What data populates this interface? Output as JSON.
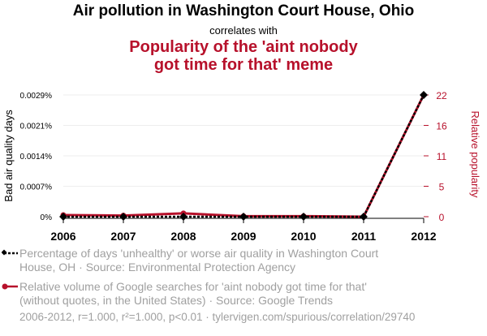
{
  "titles": {
    "main": "Air pollution in Washington Court House, Ohio",
    "connector": "correlates with",
    "secondary": "Popularity of the 'aint nobody got time for that' meme"
  },
  "colors": {
    "series1": "#000000",
    "series2": "#b7112b",
    "axis_right": "#b7112b"
  },
  "legend": [
    {
      "text": "Percentage of days 'unhealthy' or worse air quality in Washington Court House, OH · Source: Environmental Protection Agency"
    },
    {
      "text": "Relative volume of Google searches for 'aint nobody got time for that' (without quotes, in the United States) · Source: Google Trends"
    }
  ],
  "footer": "2006-2012, r=1.000, r²=1.000, p<0.01 · tylervigen.com/spurious/correlation/29740",
  "chart_data": {
    "type": "line",
    "x": [
      "2006",
      "2007",
      "2008",
      "2009",
      "2010",
      "2011",
      "2012"
    ],
    "series": [
      {
        "name": "Percentage of days 'unhealthy' or worse air quality in Washington Court House, OH",
        "axis": "left",
        "values": [
          0.0,
          0.0,
          0.0,
          0.0,
          0.0,
          0.0,
          0.0029
        ]
      },
      {
        "name": "Relative volume of Google searches for 'aint nobody got time for that'",
        "axis": "right",
        "values": [
          0.3,
          0.2,
          0.6,
          0.1,
          0.1,
          0.0,
          22
        ]
      }
    ],
    "ylabel_left": "Bad air quality days",
    "ylabel_right": "Relative popularity",
    "yticks_left": [
      "0%",
      "0.0007%",
      "0.0014%",
      "0.0021%",
      "0.0029%"
    ],
    "yticks_right": [
      "0",
      "5",
      "11",
      "16",
      "22"
    ],
    "ylim_left": [
      0,
      0.0029
    ],
    "ylim_right": [
      0,
      22
    ],
    "grid": true
  }
}
